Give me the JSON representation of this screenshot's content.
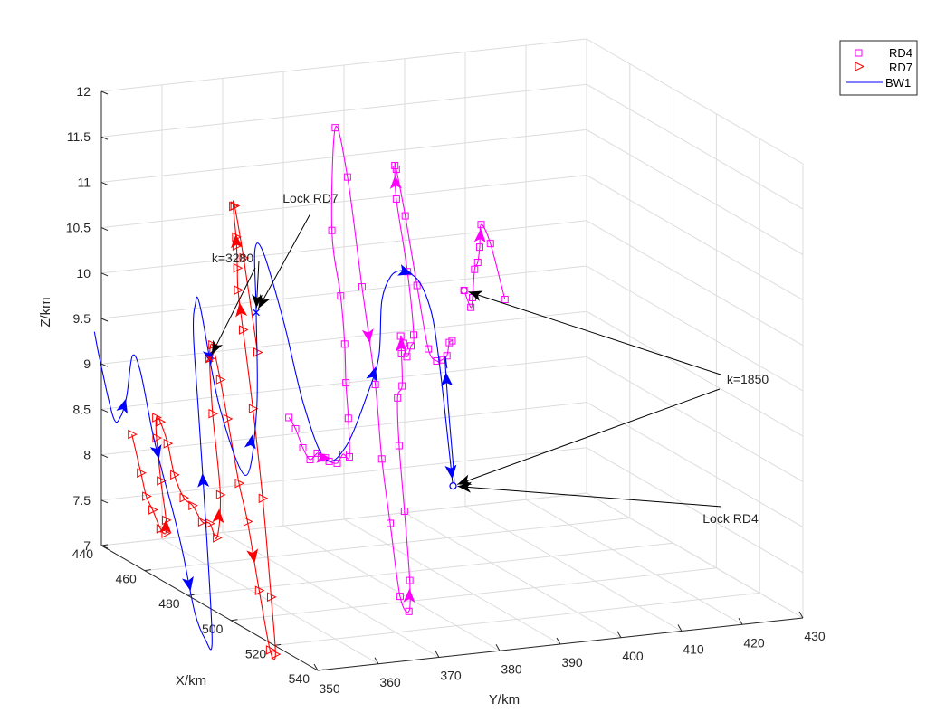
{
  "chart_data": {
    "type": "line",
    "title": "",
    "xlabel": "X/km",
    "ylabel": "Y/km",
    "zlabel": "Z/km",
    "xlim": [
      440,
      540
    ],
    "ylim": [
      350,
      430
    ],
    "zlim": [
      7,
      12
    ],
    "x_ticks": [
      "440",
      "460",
      "480",
      "500",
      "520",
      "540"
    ],
    "y_ticks": [
      "350",
      "360",
      "370",
      "380",
      "390",
      "400",
      "410",
      "420",
      "430"
    ],
    "z_ticks": [
      "7",
      "7.5",
      "8",
      "8.5",
      "9",
      "9.5",
      "10",
      "10.5",
      "11",
      "11.5",
      "12"
    ],
    "grid": true,
    "legend_position": "top-right",
    "colors": {
      "RD4": "#ff00ff",
      "RD7": "#ff0000",
      "BW1": "#0000ff"
    },
    "series": [
      {
        "name": "RD4",
        "marker": "square",
        "segments": [
          [
            [
              458,
              374.5,
              8.48
            ],
            [
              459.4,
              375.1,
              8.37
            ],
            [
              460.5,
              375.9,
              8.17
            ],
            [
              461.6,
              376.7,
              8.05
            ],
            [
              462.7,
              377.5,
              8.13
            ],
            [
              462.8,
              378.1,
              8.08
            ],
            [
              462.2,
              379.0,
              8.06
            ],
            [
              462.3,
              379.6,
              8.02
            ],
            [
              463.5,
              380.5,
              8.01
            ],
            [
              463.4,
              381.5,
              8.1
            ],
            [
              463.8,
              382.4,
              8.07
            ],
            [
              462.2,
              382.8,
              8.47
            ],
            [
              460.8,
              382.9,
              8.84
            ],
            [
              459.1,
              383.3,
              9.24
            ],
            [
              456.4,
              383.6,
              9.73
            ],
            [
              452.6,
              383.5,
              10.4
            ],
            [
              449.7,
              385.1,
              11.48
            ],
            [
              452.0,
              386.3,
              10.96
            ],
            [
              457.3,
              386.8,
              9.82
            ],
            [
              462.9,
              387.0,
              8.82
            ],
            [
              467.0,
              386.6,
              8.06
            ],
            [
              470.6,
              386.7,
              7.4
            ],
            [
              474.6,
              386.9,
              6.65
            ],
            [
              475.6,
              388.0,
              6.49
            ],
            [
              473.2,
              389.0,
              6.79
            ],
            [
              470.2,
              389.2,
              7.51
            ],
            [
              466.6,
              389.6,
              8.18
            ],
            [
              463.1,
              390.6,
              8.65
            ],
            [
              462.1,
              391.7,
              8.76
            ],
            [
              459.3,
              392.6,
              9.07
            ],
            [
              457.8,
              393.0,
              9.24
            ],
            [
              458.0,
              393.4,
              9.16
            ],
            [
              458.7,
              393.7,
              9.02
            ],
            [
              457.8,
              394.7,
              9.12
            ],
            [
              456.8,
              395.5,
              9.22
            ],
            [
              452.8,
              395.9,
              9.86
            ],
            [
              447.1,
              396.1,
              10.58
            ],
            [
              445.3,
              396.5,
              10.92
            ],
            [
              445.4,
              396.7,
              10.88
            ],
            [
              448.7,
              397.0,
              10.41
            ],
            [
              453.0,
              397.4,
              9.7
            ],
            [
              457.4,
              397.7,
              9.06
            ],
            [
              458.2,
              398.8,
              8.93
            ],
            [
              457.8,
              399.8,
              8.93
            ],
            [
              457.3,
              400.8,
              8.96
            ],
            [
              455.9,
              401.7,
              9.08
            ],
            [
              455.5,
              402.3,
              9.09
            ]
          ],
          [
            [
              451.2,
              405.8,
              9.56
            ],
            [
              452.1,
              406.6,
              9.38
            ],
            [
              451.2,
              407.2,
              9.47
            ],
            [
              448.8,
              408.4,
              9.74
            ],
            [
              448.0,
              409.2,
              9.8
            ],
            [
              446.4,
              410.1,
              9.94
            ],
            [
              444.8,
              410.9,
              10.16
            ],
            [
              446.0,
              412.0,
              9.96
            ],
            [
              449.9,
              413.0,
              9.39
            ]
          ]
        ]
      },
      {
        "name": "RD7",
        "marker": "triangle-right",
        "segments": [
          [
            [
              453.0,
              350.4,
              8.4
            ],
            [
              455.2,
              351.1,
              8.0
            ],
            [
              456.0,
              351.7,
              7.75
            ],
            [
              456.4,
              352.6,
              7.6
            ],
            [
              457.5,
              353.5,
              7.4
            ],
            [
              457.9,
              354.2,
              7.35
            ],
            [
              457.0,
              354.6,
              7.48
            ],
            [
              454.6,
              354.6,
              7.88
            ],
            [
              452.3,
              354.7,
              8.32
            ],
            [
              450.8,
              355.2,
              8.52
            ],
            [
              451.5,
              355.6,
              8.48
            ],
            [
              453.8,
              356.0,
              8.27
            ],
            [
              455.8,
              356.4,
              7.95
            ],
            [
              457.9,
              357.2,
              7.72
            ],
            [
              458.9,
              358.3,
              7.64
            ],
            [
              460.8,
              359.2,
              7.48
            ],
            [
              461.8,
              360.1,
              7.47
            ],
            [
              463.4,
              360.7,
              7.33
            ],
            [
              461.6,
              361.9,
              7.77
            ],
            [
              457.8,
              362.0,
              8.61
            ],
            [
              455.3,
              362.4,
              9.18
            ],
            [
              454.9,
              363.0,
              9.32
            ],
            [
              456.8,
              363.6,
              8.96
            ],
            [
              459.3,
              363.9,
              8.56
            ],
            [
              463.8,
              364.2,
              7.91
            ],
            [
              466.9,
              364.5,
              7.53
            ],
            [
              472.0,
              364.6,
              6.84
            ],
            [
              476.2,
              364.9,
              6.24
            ],
            [
              477.0,
              365.5,
              6.2
            ],
            [
              473.6,
              366.0,
              6.78
            ],
            [
              468.3,
              366.5,
              7.79
            ],
            [
              463.5,
              366.6,
              8.71
            ],
            [
              459.2,
              366.5,
              9.52
            ],
            [
              457.2,
              366.4,
              9.93
            ],
            [
              456.3,
              366.6,
              10.16
            ],
            [
              455.4,
              366.8,
              10.39
            ],
            [
              454.9,
              366.9,
              10.48
            ],
            [
              453.0,
              367.1,
              10.79
            ],
            [
              452.8,
              367.4,
              10.79
            ],
            [
              456.1,
              367.7,
              10.26
            ],
            [
              462.0,
              367.9,
              9.3
            ]
          ]
        ]
      },
      {
        "name": "BW1",
        "marker": "none",
        "segments": [
          [
            [
              446.6,
              346.5,
              9.47
            ],
            [
              447.3,
              347.2,
              9.15
            ],
            [
              450.0,
              348.4,
              8.56
            ],
            [
              450.6,
              349.4,
              8.57
            ],
            [
              450.9,
              350.3,
              8.8
            ],
            [
              450.4,
              351.4,
              9.22
            ],
            [
              451.6,
              352.3,
              9.06
            ],
            [
              454.4,
              353.3,
              8.42
            ],
            [
              456.3,
              354.2,
              8.01
            ],
            [
              458.4,
              355.2,
              7.6
            ],
            [
              460.4,
              356.2,
              7.14
            ],
            [
              463.1,
              357.2,
              6.52
            ],
            [
              465.1,
              358.2,
              6.25
            ],
            [
              466.5,
              358.8,
              6.24
            ],
            [
              462.2,
              359.5,
              7.27
            ],
            [
              456.5,
              360.2,
              8.55
            ],
            [
              451.7,
              361.0,
              9.41
            ],
            [
              449.5,
              362.1,
              9.7
            ],
            [
              449.5,
              362.9,
              9.67
            ],
            [
              454.8,
              364.2,
              8.63
            ],
            [
              459.6,
              366.8,
              7.92
            ],
            [
              458.8,
              368.9,
              8.63
            ],
            [
              455.2,
              370.1,
              9.63
            ],
            [
              451.5,
              371.2,
              10.25
            ],
            [
              452.2,
              372.3,
              10.24
            ],
            [
              456.9,
              374.0,
              9.53
            ],
            [
              462.8,
              375.2,
              8.69
            ],
            [
              467.7,
              377.0,
              8.14
            ],
            [
              468.5,
              380.2,
              8.27
            ],
            [
              467.1,
              384.3,
              8.81
            ],
            [
              465.7,
              386.6,
              9.18
            ],
            [
              462.5,
              388.2,
              9.72
            ],
            [
              461.6,
              390.0,
              9.97
            ],
            [
              461.4,
              391.8,
              10.02
            ],
            [
              461.3,
              393.2,
              9.98
            ],
            [
              461.5,
              394.5,
              9.9
            ],
            [
              461.8,
              395.7,
              9.73
            ],
            [
              463.0,
              396.5,
              9.46
            ],
            [
              465.5,
              396.8,
              8.93
            ],
            [
              469.6,
              396.9,
              8.04
            ],
            [
              470.8,
              397.0,
              7.74
            ],
            [
              470.3,
              397.3,
              7.87
            ],
            [
              467.0,
              397.5,
              8.61
            ],
            [
              464.3,
              398.0,
              9.06
            ],
            [
              465.2,
              398.0,
              8.95
            ]
          ]
        ]
      }
    ],
    "annotations": [
      {
        "text": "Lock RD7"
      },
      {
        "text": "k=3280"
      },
      {
        "text": "k=1850"
      },
      {
        "text": "Lock RD4"
      }
    ],
    "event_markers": [
      {
        "label": "Lock RD7",
        "series": "BW1",
        "symbol": "x"
      },
      {
        "label": "k=3280",
        "series": "RD7",
        "symbol": "x"
      },
      {
        "label": "k=1850",
        "series": "RD4",
        "symbol": "circle"
      },
      {
        "label": "Lock RD4",
        "series": "BW1",
        "symbol": "circle"
      }
    ]
  }
}
